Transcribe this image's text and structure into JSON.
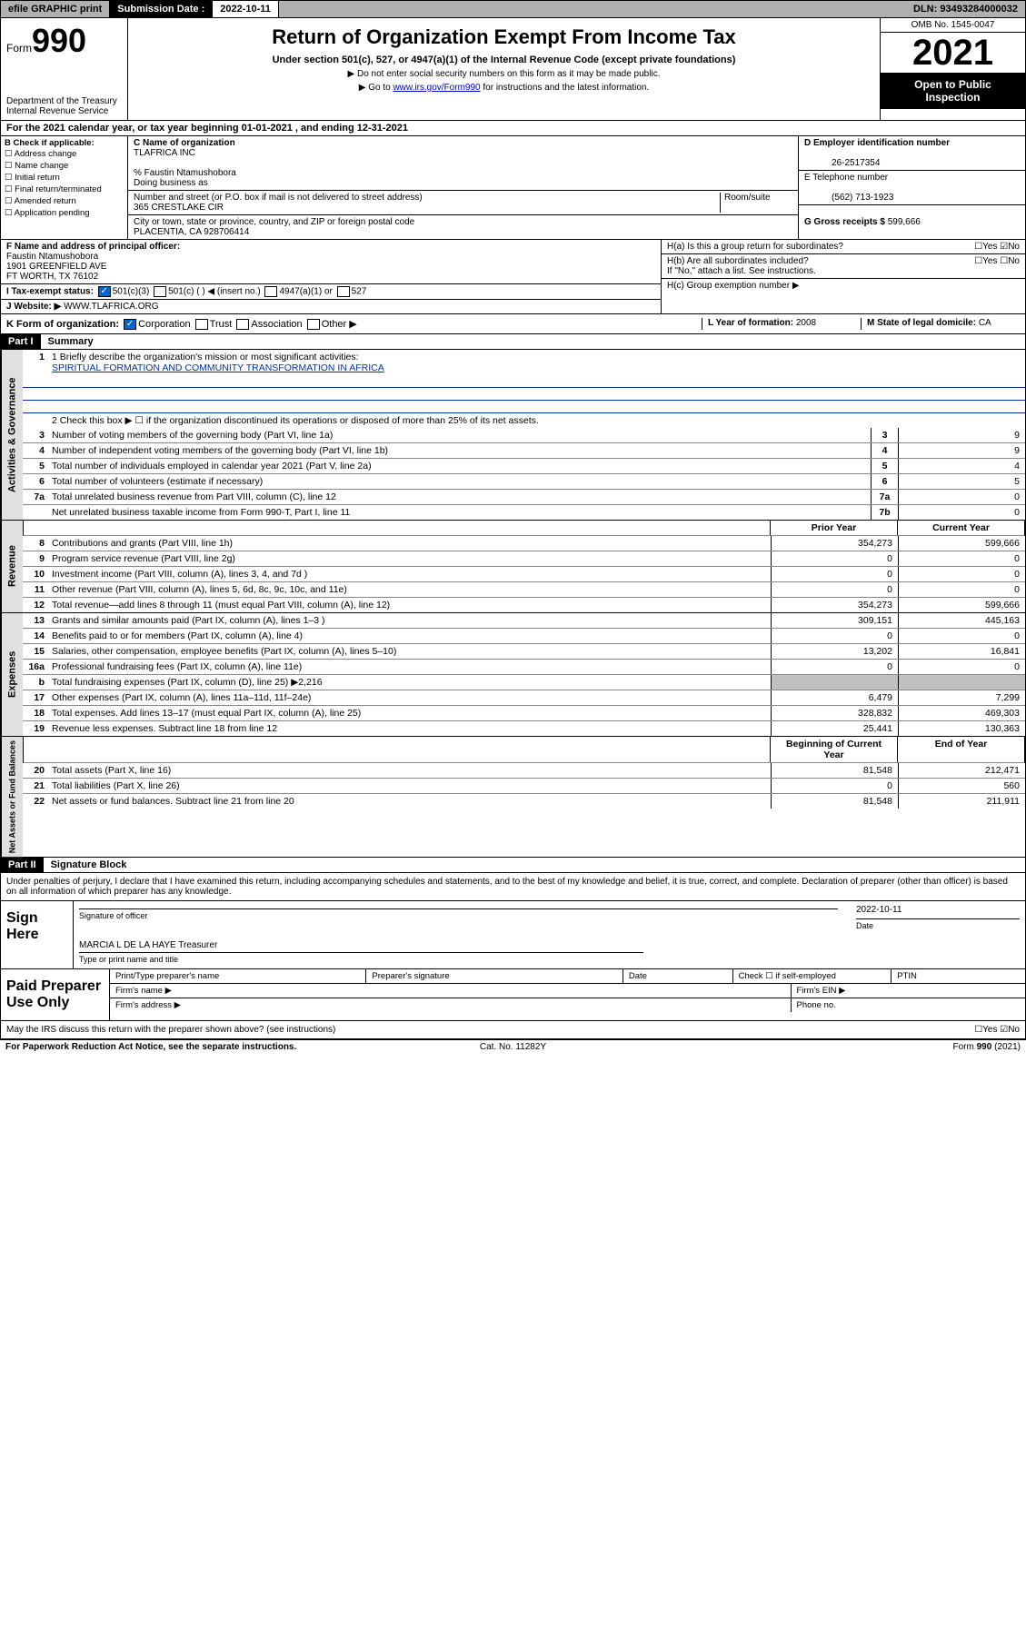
{
  "topbar": {
    "efile": "efile GRAPHIC print",
    "subdate_label": "Submission Date :",
    "subdate": "2022-10-11",
    "dln": "DLN: 93493284000032"
  },
  "header": {
    "form_prefix": "Form",
    "form_number": "990",
    "dept": "Department of the Treasury",
    "irs": "Internal Revenue Service",
    "title": "Return of Organization Exempt From Income Tax",
    "subtitle": "Under section 501(c), 527, or 4947(a)(1) of the Internal Revenue Code (except private foundations)",
    "note1": "▶ Do not enter social security numbers on this form as it may be made public.",
    "note2_prefix": "▶ Go to ",
    "note2_link": "www.irs.gov/Form990",
    "note2_suffix": " for instructions and the latest information.",
    "omb": "OMB No. 1545-0047",
    "taxyear": "2021",
    "open1": "Open to Public",
    "open2": "Inspection"
  },
  "section_a": "For the 2021 calendar year, or tax year beginning 01-01-2021   , and ending 12-31-2021",
  "section_b": {
    "label": "B Check if applicable:",
    "opts": [
      "☐ Address change",
      "☐ Name change",
      "☐ Initial return",
      "☐ Final return/terminated",
      "☐ Amended return",
      "☐ Application pending"
    ]
  },
  "section_c": {
    "name_label": "C Name of organization",
    "name": "TLAFRICA INC",
    "care_of": "% Faustin Ntamushobora",
    "dba_label": "Doing business as",
    "addr_label": "Number and street (or P.O. box if mail is not delivered to street address)",
    "room_label": "Room/suite",
    "addr": "365 CRESTLAKE CIR",
    "city_label": "City or town, state or province, country, and ZIP or foreign postal code",
    "city": "PLACENTIA, CA  928706414"
  },
  "section_d": {
    "label": "D Employer identification number",
    "ein": "26-2517354",
    "tel_label": "E Telephone number",
    "tel": "(562) 713-1923",
    "gross_label": "G Gross receipts $",
    "gross": "599,666"
  },
  "section_f": {
    "label": "F Name and address of principal officer:",
    "name": "Faustin Ntamushobora",
    "addr1": "1901 GREENFIELD AVE",
    "addr2": "FT WORTH, TX  76102"
  },
  "section_h": {
    "ha": "H(a)  Is this a group return for subordinates?",
    "ha_ans": "☐Yes  ☑No",
    "hb": "H(b)  Are all subordinates included?",
    "hb_ans": "☐Yes  ☐No",
    "hb_note": "If \"No,\" attach a list. See instructions.",
    "hc": "H(c)  Group exemption number ▶"
  },
  "section_i": {
    "label": "I   Tax-exempt status:",
    "opt1": "501(c)(3)",
    "opt2": "501(c) (  ) ◀ (insert no.)",
    "opt3": "4947(a)(1) or",
    "opt4": "527"
  },
  "section_j": {
    "label": "J   Website: ▶",
    "url": "WWW.TLAFRICA.ORG"
  },
  "section_k": {
    "label": "K Form of organization:",
    "corp": "Corporation",
    "trust": "Trust",
    "assoc": "Association",
    "other": "Other ▶",
    "l_label": "L Year of formation:",
    "l_val": "2008",
    "m_label": "M State of legal domicile:",
    "m_val": "CA"
  },
  "part1": {
    "header": "Part I",
    "title": "Summary",
    "mission_label": "1  Briefly describe the organization's mission or most significant activities:",
    "mission": "SPIRITUAL FORMATION AND COMMUNITY TRANSFORMATION IN AFRICA",
    "line2": "2   Check this box ▶ ☐  if the organization discontinued its operations or disposed of more than 25% of its net assets.",
    "governance_label": "Activities & Governance",
    "revenue_label": "Revenue",
    "expenses_label": "Expenses",
    "netassets_label": "Net Assets or Fund Balances",
    "prior_header": "Prior Year",
    "curr_header": "Current Year",
    "begin_header": "Beginning of Current Year",
    "end_header": "End of Year",
    "rows_gov": [
      {
        "n": "3",
        "d": "Number of voting members of the governing body (Part VI, line 1a)",
        "b": "3",
        "v": "9"
      },
      {
        "n": "4",
        "d": "Number of independent voting members of the governing body (Part VI, line 1b)",
        "b": "4",
        "v": "9"
      },
      {
        "n": "5",
        "d": "Total number of individuals employed in calendar year 2021 (Part V, line 2a)",
        "b": "5",
        "v": "4"
      },
      {
        "n": "6",
        "d": "Total number of volunteers (estimate if necessary)",
        "b": "6",
        "v": "5"
      },
      {
        "n": "7a",
        "d": "Total unrelated business revenue from Part VIII, column (C), line 12",
        "b": "7a",
        "v": "0"
      },
      {
        "n": "",
        "d": "Net unrelated business taxable income from Form 990-T, Part I, line 11",
        "b": "7b",
        "v": "0"
      }
    ],
    "rows_rev": [
      {
        "n": "8",
        "d": "Contributions and grants (Part VIII, line 1h)",
        "p": "354,273",
        "c": "599,666"
      },
      {
        "n": "9",
        "d": "Program service revenue (Part VIII, line 2g)",
        "p": "0",
        "c": "0"
      },
      {
        "n": "10",
        "d": "Investment income (Part VIII, column (A), lines 3, 4, and 7d )",
        "p": "0",
        "c": "0"
      },
      {
        "n": "11",
        "d": "Other revenue (Part VIII, column (A), lines 5, 6d, 8c, 9c, 10c, and 11e)",
        "p": "0",
        "c": "0"
      },
      {
        "n": "12",
        "d": "Total revenue—add lines 8 through 11 (must equal Part VIII, column (A), line 12)",
        "p": "354,273",
        "c": "599,666"
      }
    ],
    "rows_exp": [
      {
        "n": "13",
        "d": "Grants and similar amounts paid (Part IX, column (A), lines 1–3 )",
        "p": "309,151",
        "c": "445,163"
      },
      {
        "n": "14",
        "d": "Benefits paid to or for members (Part IX, column (A), line 4)",
        "p": "0",
        "c": "0"
      },
      {
        "n": "15",
        "d": "Salaries, other compensation, employee benefits (Part IX, column (A), lines 5–10)",
        "p": "13,202",
        "c": "16,841"
      },
      {
        "n": "16a",
        "d": "Professional fundraising fees (Part IX, column (A), line 11e)",
        "p": "0",
        "c": "0"
      },
      {
        "n": "b",
        "d": "Total fundraising expenses (Part IX, column (D), line 25) ▶2,216",
        "p": "",
        "c": "",
        "gray": true
      },
      {
        "n": "17",
        "d": "Other expenses (Part IX, column (A), lines 11a–11d, 11f–24e)",
        "p": "6,479",
        "c": "7,299"
      },
      {
        "n": "18",
        "d": "Total expenses. Add lines 13–17 (must equal Part IX, column (A), line 25)",
        "p": "328,832",
        "c": "469,303"
      },
      {
        "n": "19",
        "d": "Revenue less expenses. Subtract line 18 from line 12",
        "p": "25,441",
        "c": "130,363"
      }
    ],
    "rows_net": [
      {
        "n": "20",
        "d": "Total assets (Part X, line 16)",
        "p": "81,548",
        "c": "212,471"
      },
      {
        "n": "21",
        "d": "Total liabilities (Part X, line 26)",
        "p": "0",
        "c": "560"
      },
      {
        "n": "22",
        "d": "Net assets or fund balances. Subtract line 21 from line 20",
        "p": "81,548",
        "c": "211,911"
      }
    ]
  },
  "part2": {
    "header": "Part II",
    "title": "Signature Block",
    "perjury": "Under penalties of perjury, I declare that I have examined this return, including accompanying schedules and statements, and to the best of my knowledge and belief, it is true, correct, and complete. Declaration of preparer (other than officer) is based on all information of which preparer has any knowledge.",
    "sign_here": "Sign Here",
    "sig_officer": "Signature of officer",
    "sig_date_label": "Date",
    "sig_date": "2022-10-11",
    "sig_name": "MARCIA L DE LA HAYE Treasurer",
    "sig_name_label": "Type or print name and title",
    "paid_label": "Paid Preparer Use Only",
    "prep_name": "Print/Type preparer's name",
    "prep_sig": "Preparer's signature",
    "prep_date": "Date",
    "prep_check": "Check ☐ if self-employed",
    "prep_ptin": "PTIN",
    "firm_name": "Firm's name  ▶",
    "firm_ein": "Firm's EIN ▶",
    "firm_addr": "Firm's address ▶",
    "firm_phone": "Phone no.",
    "may_irs": "May the IRS discuss this return with the preparer shown above? (see instructions)",
    "may_ans": "☐Yes  ☑No"
  },
  "footer": {
    "left": "For Paperwork Reduction Act Notice, see the separate instructions.",
    "mid": "Cat. No. 11282Y",
    "right": "Form 990 (2021)"
  }
}
